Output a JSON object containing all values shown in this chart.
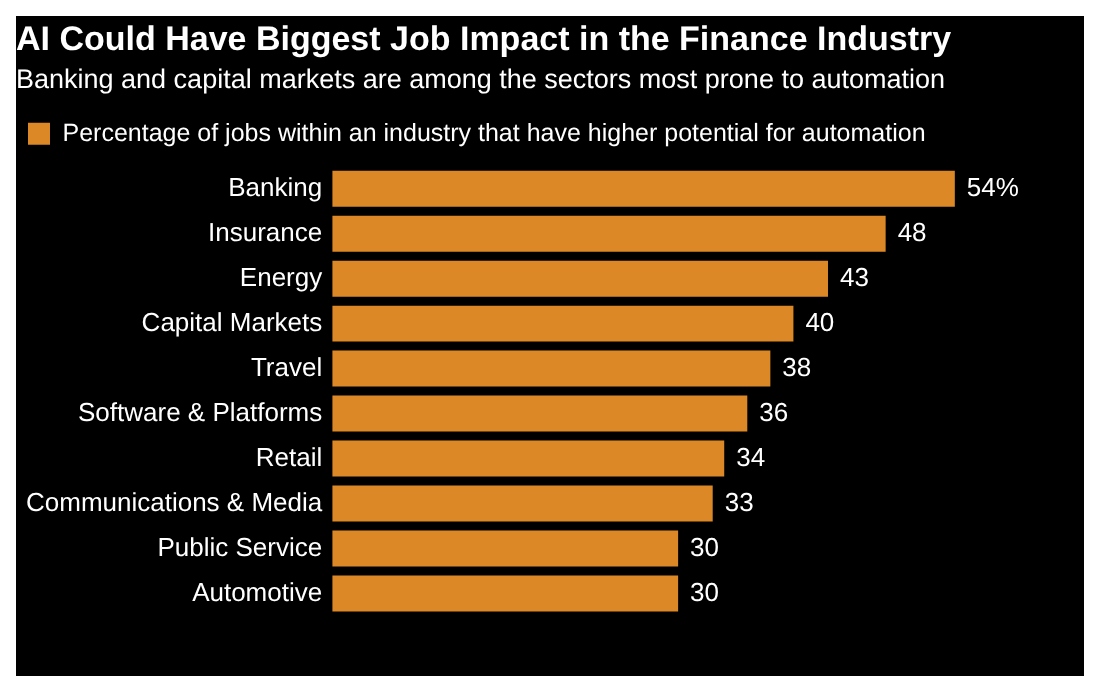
{
  "chart_data": {
    "type": "bar",
    "orientation": "horizontal",
    "title": "AI Could Have Biggest Job Impact in the Finance Industry",
    "subtitle": "Banking and capital markets are among the sectors most prone to automation",
    "categories": [
      "Banking",
      "Insurance",
      "Energy",
      "Capital Markets",
      "Travel",
      "Software & Platforms",
      "Retail",
      "Communications & Media",
      "Public Service",
      "Automotive"
    ],
    "series": [
      {
        "name": "Percentage of jobs within an industry that have higher potential for automation",
        "color": "#dc8826",
        "values": [
          54,
          48,
          43,
          40,
          38,
          36,
          34,
          33,
          30,
          30
        ],
        "value_labels": [
          "54%",
          "48",
          "43",
          "40",
          "38",
          "36",
          "34",
          "33",
          "30",
          "30"
        ]
      }
    ],
    "tick_labels": "y",
    "grid": false,
    "legend": "top left"
  }
}
